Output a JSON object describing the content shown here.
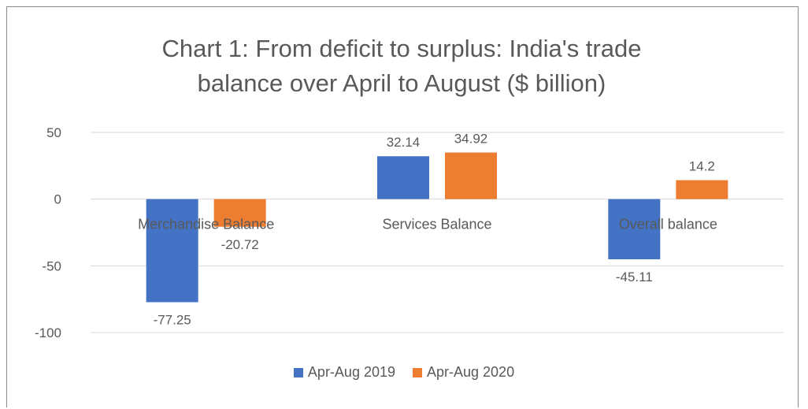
{
  "chart_data": {
    "type": "bar",
    "title_lines": [
      "Chart 1: From deficit to surplus: India's trade",
      "balance over April to August ($ billion)"
    ],
    "categories": [
      "Merchandise Balance",
      "Services Balance",
      "Overall balance"
    ],
    "series": [
      {
        "name": "Apr-Aug 2019",
        "color": "#4472C4",
        "values": [
          -77.25,
          32.14,
          -45.11
        ]
      },
      {
        "name": "Apr-Aug 2020",
        "color": "#ED7D31",
        "values": [
          -20.72,
          34.92,
          14.2
        ]
      }
    ],
    "data_labels": [
      [
        "-77.25",
        "32.14",
        "-45.11"
      ],
      [
        "-20.72",
        "34.92",
        "14.2"
      ]
    ],
    "yticks": [
      50,
      0,
      -50,
      -100
    ],
    "ylim": [
      -100,
      50
    ],
    "xlabel": "",
    "ylabel": "",
    "grid": true,
    "legend_position": "bottom"
  }
}
